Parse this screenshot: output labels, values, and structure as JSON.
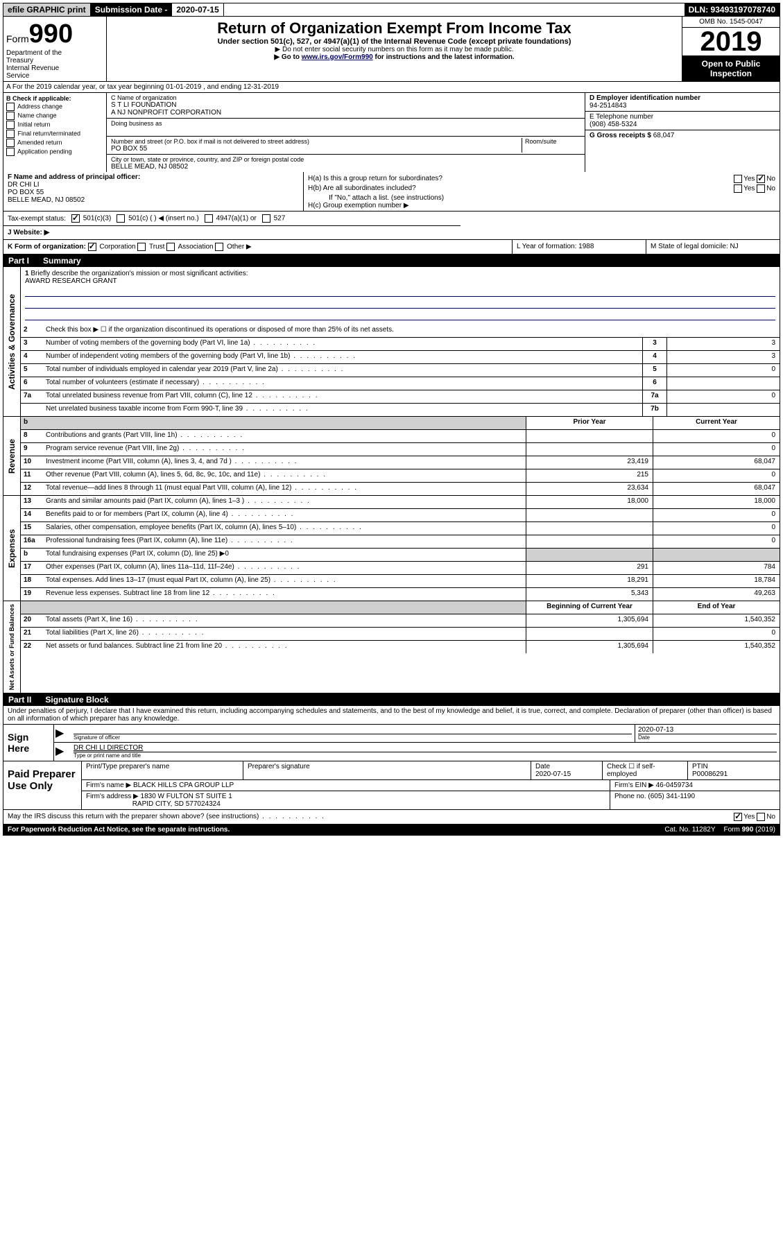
{
  "topbar": {
    "efile": "efile GRAPHIC print",
    "sub_date_label": "Submission Date - ",
    "sub_date": "2020-07-15",
    "dln": "DLN: 93493197078740"
  },
  "header": {
    "form_label": "Form",
    "form_num": "990",
    "dept": "Department of the Treasury\nInternal Revenue Service",
    "title": "Return of Organization Exempt From Income Tax",
    "subtitle": "Under section 501(c), 527, or 4947(a)(1) of the Internal Revenue Code (except private foundations)",
    "note1": "▶ Do not enter social security numbers on this form as it may be made public.",
    "note2_pre": "▶ Go to ",
    "note2_link": "www.irs.gov/Form990",
    "note2_post": " for instructions and the latest information.",
    "omb": "OMB No. 1545-0047",
    "year": "2019",
    "inspection": "Open to Public Inspection"
  },
  "row_a": "A For the 2019 calendar year, or tax year beginning 01-01-2019   , and ending 12-31-2019",
  "col_b": {
    "header": "B Check if applicable:",
    "items": [
      "Address change",
      "Name change",
      "Initial return",
      "Final return/terminated",
      "Amended return",
      "Application pending"
    ]
  },
  "col_c": {
    "name_label": "C Name of organization",
    "name1": "S T LI FOUNDATION",
    "name2": "A NJ NONPROFIT CORPORATION",
    "dba_label": "Doing business as",
    "addr_label": "Number and street (or P.O. box if mail is not delivered to street address)",
    "room_label": "Room/suite",
    "addr": "PO BOX 55",
    "city_label": "City or town, state or province, country, and ZIP or foreign postal code",
    "city": "BELLE MEAD, NJ  08502"
  },
  "col_d": {
    "label": "D Employer identification number",
    "val": "94-2514843"
  },
  "col_e": {
    "label": "E Telephone number",
    "val": "(908) 458-5324"
  },
  "col_g": {
    "label": "G Gross receipts $ ",
    "val": "68,047"
  },
  "col_f": {
    "label": "F  Name and address of principal officer:",
    "name": "DR CHI LI",
    "addr1": "PO BOX 55",
    "addr2": "BELLE MEAD, NJ  08502"
  },
  "col_h": {
    "ha": "H(a)  Is this a group return for subordinates?",
    "hb": "H(b)  Are all subordinates included?",
    "hb_note": "If \"No,\" attach a list. (see instructions)",
    "hc": "H(c)  Group exemption number ▶"
  },
  "tax_exempt": {
    "label": "Tax-exempt status:",
    "opt1": "501(c)(3)",
    "opt2": "501(c) (  ) ◀ (insert no.)",
    "opt3": "4947(a)(1) or",
    "opt4": "527"
  },
  "website": {
    "label": "J   Website: ▶"
  },
  "row_k": {
    "k": "K Form of organization:",
    "corp": "Corporation",
    "trust": "Trust",
    "assoc": "Association",
    "other": "Other ▶",
    "l": "L Year of formation: 1988",
    "m": "M State of legal domicile: NJ"
  },
  "part1": {
    "label": "Part I",
    "title": "Summary"
  },
  "summary": {
    "sections": {
      "gov": "Activities & Governance",
      "rev": "Revenue",
      "exp": "Expenses",
      "net": "Net Assets or Fund Balances"
    },
    "line1": "Briefly describe the organization's mission or most significant activities:",
    "mission": "AWARD RESEARCH GRANT",
    "line2": "Check this box ▶ ☐  if the organization discontinued its operations or disposed of more than 25% of its net assets.",
    "rows_gov": [
      {
        "n": "3",
        "label": "Number of voting members of the governing body (Part VI, line 1a)",
        "box": "3",
        "val": "3"
      },
      {
        "n": "4",
        "label": "Number of independent voting members of the governing body (Part VI, line 1b)",
        "box": "4",
        "val": "3"
      },
      {
        "n": "5",
        "label": "Total number of individuals employed in calendar year 2019 (Part V, line 2a)",
        "box": "5",
        "val": "0"
      },
      {
        "n": "6",
        "label": "Total number of volunteers (estimate if necessary)",
        "box": "6",
        "val": ""
      },
      {
        "n": "7a",
        "label": "Total unrelated business revenue from Part VIII, column (C), line 12",
        "box": "7a",
        "val": "0"
      },
      {
        "n": "",
        "label": "Net unrelated business taxable income from Form 990-T, line 39",
        "box": "7b",
        "val": ""
      }
    ],
    "col_headers": {
      "prior": "Prior Year",
      "curr": "Current Year"
    },
    "rows_rev": [
      {
        "n": "8",
        "label": "Contributions and grants (Part VIII, line 1h)",
        "prior": "",
        "curr": "0"
      },
      {
        "n": "9",
        "label": "Program service revenue (Part VIII, line 2g)",
        "prior": "",
        "curr": "0"
      },
      {
        "n": "10",
        "label": "Investment income (Part VIII, column (A), lines 3, 4, and 7d )",
        "prior": "23,419",
        "curr": "68,047"
      },
      {
        "n": "11",
        "label": "Other revenue (Part VIII, column (A), lines 5, 6d, 8c, 9c, 10c, and 11e)",
        "prior": "215",
        "curr": "0"
      },
      {
        "n": "12",
        "label": "Total revenue—add lines 8 through 11 (must equal Part VIII, column (A), line 12)",
        "prior": "23,634",
        "curr": "68,047"
      }
    ],
    "rows_exp": [
      {
        "n": "13",
        "label": "Grants and similar amounts paid (Part IX, column (A), lines 1–3 )",
        "prior": "18,000",
        "curr": "18,000"
      },
      {
        "n": "14",
        "label": "Benefits paid to or for members (Part IX, column (A), line 4)",
        "prior": "",
        "curr": "0"
      },
      {
        "n": "15",
        "label": "Salaries, other compensation, employee benefits (Part IX, column (A), lines 5–10)",
        "prior": "",
        "curr": "0"
      },
      {
        "n": "16a",
        "label": "Professional fundraising fees (Part IX, column (A), line 11e)",
        "prior": "",
        "curr": "0"
      },
      {
        "n": "b",
        "label": "Total fundraising expenses (Part IX, column (D), line 25) ▶0",
        "prior": "SHADE",
        "curr": "SHADE"
      },
      {
        "n": "17",
        "label": "Other expenses (Part IX, column (A), lines 11a–11d, 11f–24e)",
        "prior": "291",
        "curr": "784"
      },
      {
        "n": "18",
        "label": "Total expenses. Add lines 13–17 (must equal Part IX, column (A), line 25)",
        "prior": "18,291",
        "curr": "18,784"
      },
      {
        "n": "19",
        "label": "Revenue less expenses. Subtract line 18 from line 12",
        "prior": "5,343",
        "curr": "49,263"
      }
    ],
    "net_headers": {
      "begin": "Beginning of Current Year",
      "end": "End of Year"
    },
    "rows_net": [
      {
        "n": "20",
        "label": "Total assets (Part X, line 16)",
        "prior": "1,305,694",
        "curr": "1,540,352"
      },
      {
        "n": "21",
        "label": "Total liabilities (Part X, line 26)",
        "prior": "",
        "curr": "0"
      },
      {
        "n": "22",
        "label": "Net assets or fund balances. Subtract line 21 from line 20",
        "prior": "1,305,694",
        "curr": "1,540,352"
      }
    ]
  },
  "part2": {
    "label": "Part II",
    "title": "Signature Block"
  },
  "perjury": "Under penalties of perjury, I declare that I have examined this return, including accompanying schedules and statements, and to the best of my knowledge and belief, it is true, correct, and complete. Declaration of preparer (other than officer) is based on all information of which preparer has any knowledge.",
  "sign": {
    "label": "Sign Here",
    "sig_label": "Signature of officer",
    "date": "2020-07-13",
    "date_label": "Date",
    "name": "DR CHI LI DIRECTOR",
    "name_label": "Type or print name and title"
  },
  "paid": {
    "label": "Paid Preparer Use Only",
    "headers": {
      "name": "Print/Type preparer's name",
      "sig": "Preparer's signature",
      "date": "Date",
      "check": "Check ☐ if self-employed",
      "ptin": "PTIN"
    },
    "date": "2020-07-15",
    "ptin": "P00086291",
    "firm_label": "Firm's name      ▶",
    "firm": "BLACK HILLS CPA GROUP LLP",
    "ein_label": "Firm's EIN ▶",
    "ein": "46-0459734",
    "addr_label": "Firm's address ▶",
    "addr1": "1830 W FULTON ST SUITE 1",
    "addr2": "RAPID CITY, SD  577024324",
    "phone_label": "Phone no.",
    "phone": "(605) 341-1190"
  },
  "discuss": "May the IRS discuss this return with the preparer shown above? (see instructions)",
  "footer": {
    "paperwork": "For Paperwork Reduction Act Notice, see the separate instructions.",
    "cat": "Cat. No. 11282Y",
    "form": "Form 990 (2019)"
  }
}
